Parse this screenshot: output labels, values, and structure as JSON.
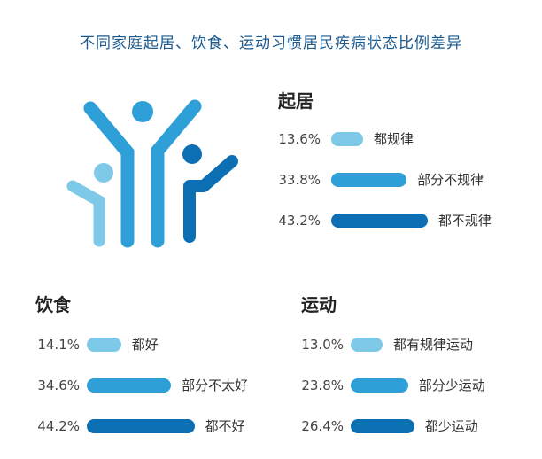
{
  "title": "不同家庭起居、饮食、运动习惯居民疾病状态比例差异",
  "colors": {
    "light": "#7ec8e8",
    "mid": "#2f9fd8",
    "dark": "#0d6fb3"
  },
  "chart_data": [
    {
      "type": "bar",
      "title": "起居",
      "categories": [
        "都规律",
        "部分不规律",
        "都不规律"
      ],
      "values": [
        13.6,
        33.8,
        43.2
      ],
      "value_labels": [
        "13.6%",
        "33.8%",
        "43.2%"
      ],
      "unit": "%"
    },
    {
      "type": "bar",
      "title": "饮食",
      "categories": [
        "都好",
        "部分不太好",
        "都不好"
      ],
      "values": [
        14.1,
        34.6,
        44.2
      ],
      "value_labels": [
        "14.1%",
        "34.6%",
        "44.2%"
      ],
      "unit": "%"
    },
    {
      "type": "bar",
      "title": "运动",
      "categories": [
        "都有规律运动",
        "部分少运动",
        "都少运动"
      ],
      "values": [
        13.0,
        23.8,
        26.4
      ],
      "value_labels": [
        "13.0%",
        "23.8%",
        "26.4%"
      ],
      "unit": "%"
    }
  ]
}
